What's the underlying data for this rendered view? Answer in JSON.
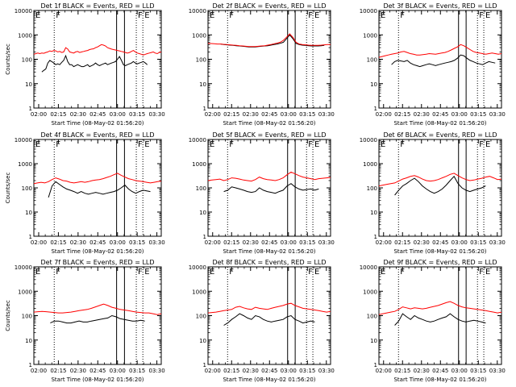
{
  "chart_data": [
    {
      "type": "line",
      "title": "Det 1f BLACK = Events, RED = LLD",
      "ylabel": "Counts/sec",
      "xlabel": "Start Time (08-May-02 01:56:20)",
      "series": [
        {
          "name": "Events",
          "color": "#000000",
          "values": [
            null,
            null,
            null,
            null,
            30,
            35,
            40,
            70,
            90,
            80,
            70,
            60,
            65,
            60,
            75,
            90,
            140,
            80,
            60,
            60,
            50,
            55,
            60,
            55,
            50,
            50,
            55,
            60,
            50,
            55,
            60,
            70,
            60,
            55,
            60,
            65,
            70,
            60,
            65,
            70,
            75,
            80,
            100,
            130,
            90,
            60,
            55,
            60,
            65,
            70,
            80,
            70,
            65,
            70,
            75,
            80,
            70,
            60,
            null,
            null,
            null,
            null,
            null,
            null,
            null
          ]
        },
        {
          "name": "LLD",
          "color": "#ff0000",
          "values": [
            160,
            170,
            180,
            170,
            180,
            175,
            190,
            200,
            220,
            210,
            230,
            220,
            200,
            210,
            190,
            200,
            300,
            260,
            200,
            190,
            180,
            200,
            210,
            190,
            200,
            210,
            220,
            230,
            250,
            260,
            270,
            300,
            320,
            360,
            400,
            380,
            350,
            300,
            280,
            260,
            250,
            240,
            230,
            220,
            210,
            200,
            190,
            180,
            190,
            210,
            230,
            200,
            180,
            170,
            160,
            150,
            160,
            170,
            180,
            190,
            200,
            180,
            170,
            190,
            200
          ]
        }
      ]
    },
    {
      "type": "line",
      "title": "Det 2f BLACK = Events, RED = LLD",
      "ylabel": "",
      "xlabel": "Start Time (08-May-02 01:56:20)",
      "series": [
        {
          "name": "Events",
          "color": "#000000",
          "values": [
            null,
            null,
            null,
            null,
            420,
            400,
            390,
            380,
            370,
            360,
            350,
            340,
            330,
            320,
            320,
            320,
            330,
            340,
            350,
            360,
            380,
            400,
            420,
            450,
            500,
            700,
            1000,
            700,
            450,
            400,
            380,
            370,
            360,
            350,
            350,
            350,
            360,
            370,
            null,
            null
          ]
        },
        {
          "name": "LLD",
          "color": "#ff0000",
          "values": [
            450,
            440,
            430,
            420,
            420,
            410,
            400,
            390,
            380,
            370,
            360,
            350,
            340,
            330,
            330,
            330,
            340,
            350,
            360,
            380,
            400,
            430,
            460,
            500,
            600,
            800,
            1100,
            800,
            500,
            420,
            400,
            390,
            380,
            370,
            370,
            370,
            380,
            390,
            400,
            400
          ]
        }
      ]
    },
    {
      "type": "line",
      "title": "Det 3f BLACK = Events, RED = LLD",
      "ylabel": "",
      "xlabel": "Start Time (08-May-02 01:56:20)",
      "series": [
        {
          "name": "Events",
          "color": "#000000",
          "values": [
            null,
            null,
            null,
            null,
            60,
            80,
            90,
            85,
            80,
            90,
            70,
            60,
            55,
            50,
            55,
            60,
            65,
            60,
            55,
            60,
            65,
            70,
            75,
            80,
            90,
            110,
            150,
            140,
            110,
            90,
            80,
            70,
            65,
            60,
            70,
            80,
            75,
            70,
            null,
            null
          ]
        },
        {
          "name": "LLD",
          "color": "#ff0000",
          "values": [
            120,
            130,
            140,
            150,
            160,
            170,
            180,
            200,
            210,
            190,
            170,
            160,
            150,
            150,
            155,
            160,
            170,
            165,
            160,
            170,
            180,
            190,
            210,
            240,
            280,
            320,
            400,
            360,
            300,
            250,
            210,
            190,
            180,
            170,
            160,
            170,
            180,
            170,
            160,
            170
          ]
        }
      ]
    },
    {
      "type": "line",
      "title": "Det 4f BLACK = Events, RED = LLD",
      "ylabel": "Counts/sec",
      "xlabel": "Start Time (08-May-02 01:56:20)",
      "series": [
        {
          "name": "Events",
          "color": "#000000",
          "values": [
            null,
            null,
            null,
            null,
            40,
            120,
            180,
            140,
            110,
            90,
            80,
            70,
            60,
            70,
            60,
            55,
            60,
            65,
            60,
            55,
            60,
            65,
            70,
            80,
            100,
            130,
            90,
            70,
            60,
            70,
            80,
            75,
            70,
            null,
            null,
            null
          ]
        },
        {
          "name": "LLD",
          "color": "#ff0000",
          "values": [
            150,
            160,
            170,
            160,
            180,
            220,
            260,
            230,
            200,
            190,
            170,
            160,
            170,
            180,
            170,
            180,
            200,
            210,
            220,
            240,
            270,
            300,
            350,
            400,
            330,
            280,
            240,
            220,
            200,
            190,
            180,
            170,
            160,
            170,
            180,
            190
          ]
        }
      ]
    },
    {
      "type": "line",
      "title": "Det 5f BLACK = Events, RED = LLD",
      "ylabel": "",
      "xlabel": "Start Time (08-May-02 01:56:20)",
      "series": [
        {
          "name": "Events",
          "color": "#000000",
          "values": [
            null,
            null,
            null,
            null,
            70,
            80,
            110,
            100,
            90,
            80,
            70,
            65,
            70,
            100,
            80,
            70,
            65,
            60,
            70,
            80,
            120,
            150,
            110,
            90,
            80,
            85,
            90,
            80,
            90,
            null,
            null,
            null
          ]
        },
        {
          "name": "LLD",
          "color": "#ff0000",
          "values": [
            200,
            210,
            220,
            230,
            200,
            220,
            260,
            250,
            230,
            210,
            200,
            190,
            220,
            280,
            240,
            220,
            210,
            200,
            220,
            260,
            350,
            450,
            380,
            320,
            280,
            260,
            240,
            220,
            240,
            250,
            260,
            270
          ]
        }
      ]
    },
    {
      "type": "line",
      "title": "Det 6f BLACK = Events, RED = LLD",
      "ylabel": "",
      "xlabel": "Start Time (08-May-02 01:56:20)",
      "series": [
        {
          "name": "Events",
          "color": "#000000",
          "values": [
            null,
            null,
            null,
            null,
            50,
            80,
            120,
            150,
            200,
            250,
            180,
            120,
            90,
            70,
            60,
            70,
            90,
            130,
            200,
            300,
            150,
            100,
            80,
            70,
            80,
            90,
            100,
            120,
            null,
            null,
            null,
            null
          ]
        },
        {
          "name": "LLD",
          "color": "#ff0000",
          "values": [
            120,
            130,
            140,
            150,
            160,
            190,
            230,
            260,
            300,
            320,
            280,
            230,
            200,
            190,
            200,
            220,
            260,
            300,
            360,
            400,
            320,
            260,
            220,
            200,
            210,
            230,
            250,
            280,
            300,
            260,
            220,
            230
          ]
        }
      ]
    },
    {
      "type": "line",
      "title": "Det 7f BLACK = Events, RED = LLD",
      "ylabel": "Counts/sec",
      "xlabel": "Start Time (08-May-02 01:56:20)",
      "series": [
        {
          "name": "Events",
          "color": "#000000",
          "values": [
            null,
            null,
            null,
            null,
            50,
            60,
            60,
            55,
            50,
            50,
            55,
            60,
            55,
            55,
            60,
            65,
            70,
            75,
            80,
            100,
            90,
            75,
            70,
            65,
            60,
            60,
            65,
            60,
            null,
            null,
            null,
            null
          ]
        },
        {
          "name": "LLD",
          "color": "#ff0000",
          "values": [
            140,
            145,
            150,
            145,
            140,
            135,
            130,
            130,
            135,
            140,
            150,
            160,
            170,
            180,
            200,
            230,
            260,
            300,
            260,
            220,
            200,
            180,
            170,
            160,
            150,
            140,
            135,
            130,
            130,
            120,
            110,
            120
          ]
        }
      ]
    },
    {
      "type": "line",
      "title": "Det 8f BLACK = Events, RED = LLD",
      "ylabel": "",
      "xlabel": "Start Time (08-May-02 01:56:20)",
      "series": [
        {
          "name": "Events",
          "color": "#000000",
          "values": [
            null,
            null,
            null,
            null,
            40,
            50,
            70,
            90,
            120,
            100,
            80,
            70,
            100,
            90,
            70,
            60,
            55,
            60,
            65,
            70,
            90,
            100,
            70,
            60,
            50,
            55,
            60,
            55,
            null,
            null,
            null,
            null
          ]
        },
        {
          "name": "LLD",
          "color": "#ff0000",
          "values": [
            130,
            135,
            140,
            150,
            160,
            170,
            180,
            220,
            240,
            210,
            190,
            180,
            220,
            200,
            190,
            180,
            200,
            220,
            240,
            260,
            300,
            320,
            260,
            230,
            200,
            190,
            180,
            170,
            160,
            150,
            140,
            150
          ]
        }
      ]
    },
    {
      "type": "line",
      "title": "Det 9f BLACK = Events, RED = LLD",
      "ylabel": "",
      "xlabel": "Start Time (08-May-02 01:56:20)",
      "series": [
        {
          "name": "Events",
          "color": "#000000",
          "values": [
            null,
            null,
            null,
            null,
            40,
            60,
            120,
            90,
            70,
            100,
            80,
            70,
            60,
            55,
            60,
            70,
            80,
            90,
            120,
            90,
            70,
            60,
            55,
            60,
            65,
            60,
            55,
            50,
            null,
            null,
            null,
            null
          ]
        },
        {
          "name": "LLD",
          "color": "#ff0000",
          "values": [
            110,
            120,
            130,
            140,
            150,
            180,
            230,
            210,
            190,
            210,
            200,
            190,
            200,
            220,
            240,
            260,
            300,
            340,
            380,
            320,
            260,
            230,
            210,
            200,
            190,
            180,
            170,
            160,
            150,
            140,
            130,
            140
          ]
        }
      ]
    }
  ],
  "axes": {
    "y_ticks": [
      "1",
      "10",
      "100",
      "1000",
      "10000"
    ],
    "x_ticks": [
      "02:00",
      "02:15",
      "02:30",
      "02:45",
      "03:00",
      "03:15",
      "03:30"
    ],
    "x_start_min": 0,
    "x_end_min": 97
  },
  "markers": [
    {
      "t": 15.5,
      "label": "F",
      "style": "dotted"
    },
    {
      "t": 63.0,
      "label": "",
      "style": "solid"
    },
    {
      "t": 69.0,
      "label": "",
      "style": "solid"
    },
    {
      "t": 78.0,
      "label": "F",
      "style": "dotted"
    },
    {
      "t": 83.0,
      "label": "E",
      "style": "dotted"
    }
  ],
  "corner_label": "E"
}
